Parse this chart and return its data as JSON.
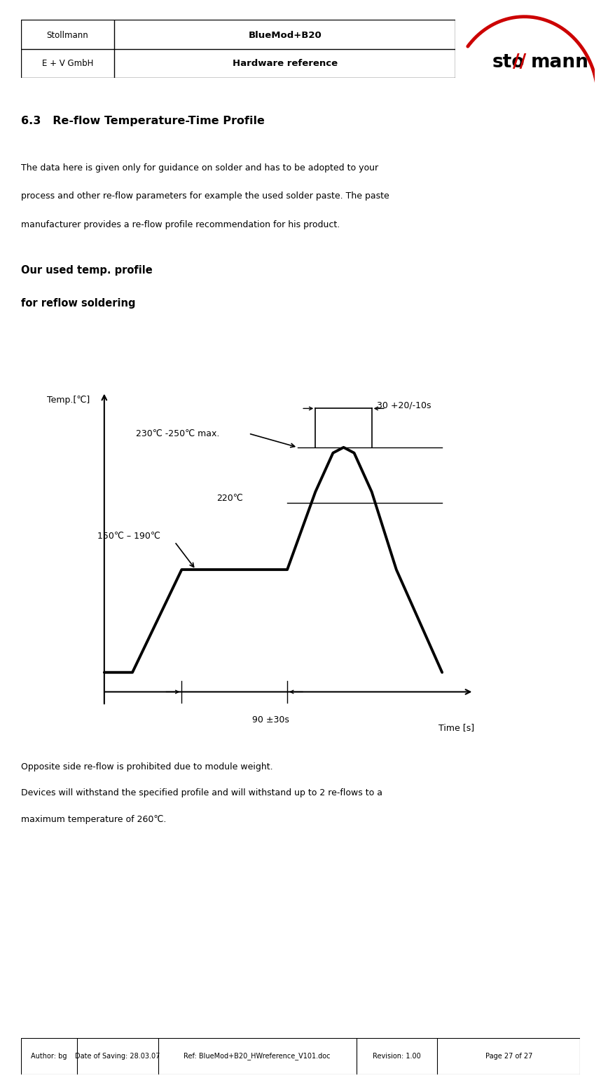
{
  "page_width": 8.58,
  "page_height": 15.47,
  "bg_color": "#ffffff",
  "header_row1_left": "Stollmann",
  "header_row1_right": "BlueMod+B20",
  "header_row2_left": "E + V GmbH",
  "header_row2_right": "Hardware reference",
  "footer_cells": [
    "Author: bg",
    "Date of Saving: 28.03.07",
    "Ref: BlueMod+B20_HWreference_V101.doc",
    "Revision: 1.00",
    "Page 27 of 27"
  ],
  "footer_divs": [
    0.1,
    0.245,
    0.6,
    0.745
  ],
  "section_title": "6.3   Re-flow Temperature-Time Profile",
  "paragraph_lines": [
    "The data here is given only for guidance on solder and has to be adopted to your",
    "process and other re-flow parameters for example the used solder paste. The paste",
    "manufacturer provides a re-flow profile recommendation for his product."
  ],
  "chart_title_line1": "Our used temp. profile",
  "chart_title_line2": "for reflow soldering",
  "ylabel": "Temp.[℃]",
  "xlabel": "Time [s]",
  "annotation_top": "230℃ -250℃ max.",
  "annotation_220": "220℃",
  "annotation_150_190": "150℃ – 190℃",
  "annotation_90": "90 ±30s",
  "annotation_30": "30 +20/-10s",
  "note1": "Opposite side re-flow is prohibited due to module weight.",
  "note2": "Devices will withstand the specified profile and will withstand up to 2 re-flows to a",
  "note3": "maximum temperature of 260℃.",
  "line_color": "#000000",
  "line_width": 2.8
}
